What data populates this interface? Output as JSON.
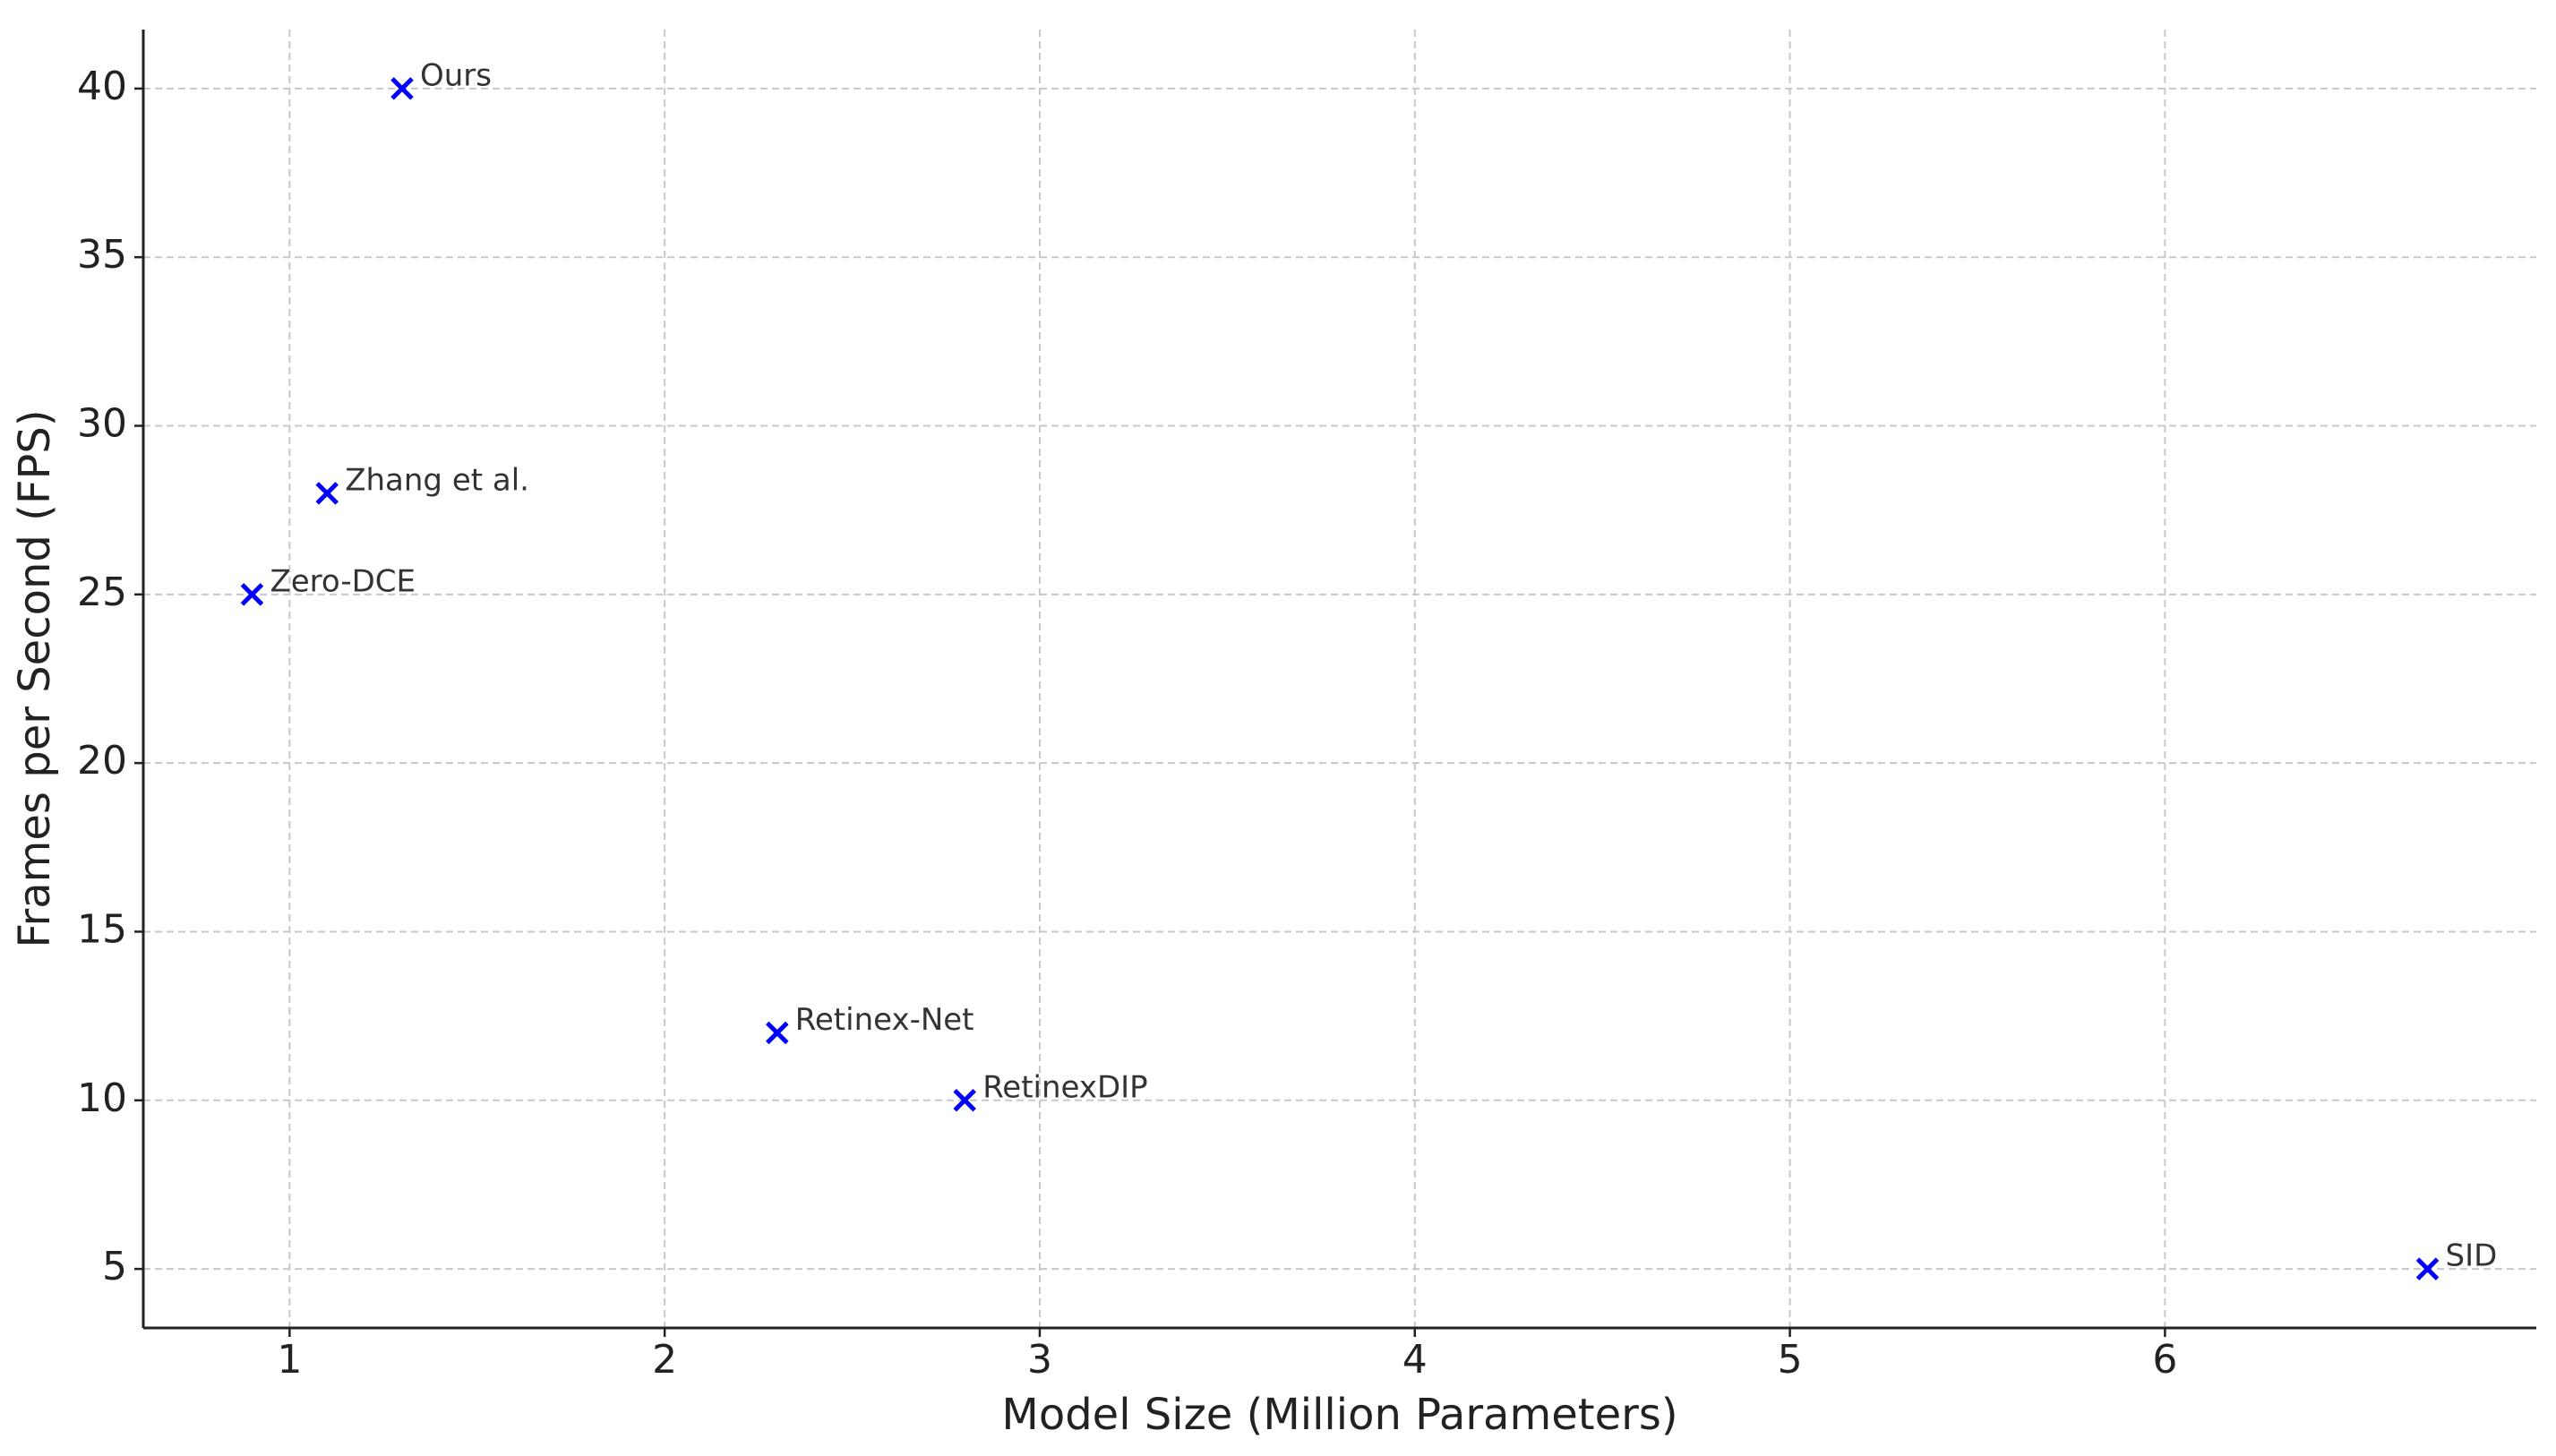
{
  "chart_data": {
    "type": "scatter",
    "x_label": "Model Size (Million Parameters)",
    "y_label": "Frames per Second (FPS)",
    "labels": [
      "Ours",
      "Zhang et al.",
      "Zero-DCE",
      "Retinex-Net",
      "RetinexDIP",
      "SID"
    ],
    "x": [
      1.3,
      1.1,
      0.9,
      2.3,
      2.8,
      6.7
    ],
    "values": [
      40,
      28,
      25,
      12,
      10,
      5
    ],
    "color": "#0000ff",
    "marker": "x",
    "xlim": [
      0.61,
      6.99
    ],
    "xticks": [
      1,
      2,
      3,
      4,
      5,
      6
    ],
    "ylim": [
      3.25,
      41.75
    ],
    "yticks": [
      5,
      10,
      15,
      20,
      25,
      30,
      35,
      40
    ],
    "grid": true
  }
}
